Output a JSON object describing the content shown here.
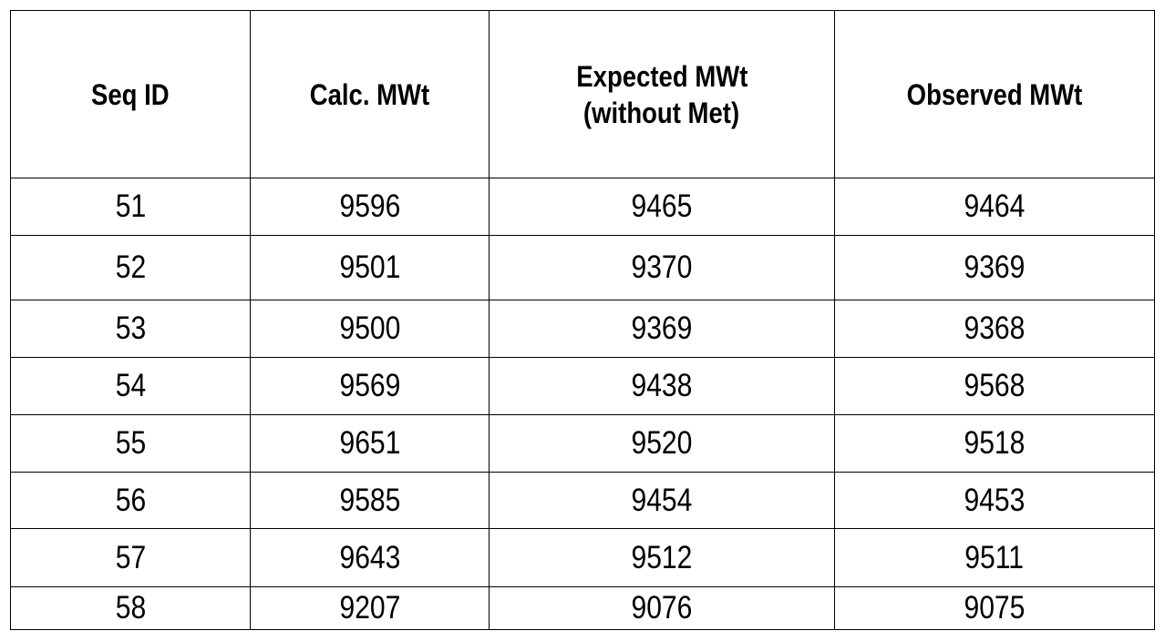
{
  "table": {
    "header": [
      "Seq ID",
      "Calc. MWt",
      [
        "Expected MWt",
        "(without Met)"
      ],
      "Observed MWt"
    ],
    "rows": [
      [
        51,
        9596,
        9465,
        9464
      ],
      [
        52,
        9501,
        9370,
        9369
      ],
      [
        53,
        9500,
        9369,
        9368
      ],
      [
        54,
        9569,
        9438,
        9568
      ],
      [
        55,
        9651,
        9520,
        9518
      ],
      [
        56,
        9585,
        9454,
        9453
      ],
      [
        57,
        9643,
        9512,
        9511
      ],
      [
        58,
        9207,
        9076,
        9075
      ]
    ]
  }
}
